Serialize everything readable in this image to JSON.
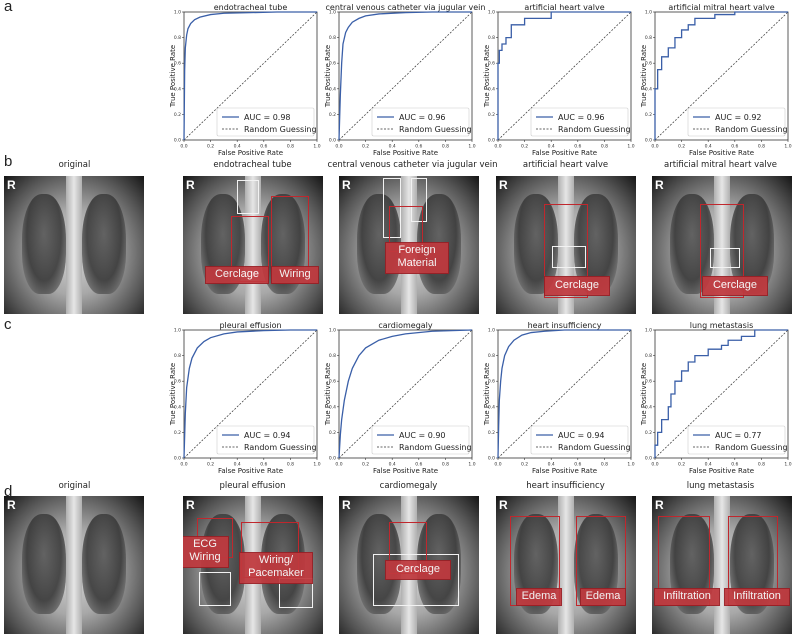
{
  "panels": {
    "a": "a",
    "b": "b",
    "c": "c",
    "d": "d"
  },
  "axis_labels": {
    "x": "False Positive Rate",
    "y": "True Positive Rate",
    "ticks": [
      "0.0",
      "0.2",
      "0.4",
      "0.6",
      "0.8",
      "1.0"
    ]
  },
  "legend": {
    "random": "Random Guessing"
  },
  "colors": {
    "roc": "#3a5fa8",
    "box_red": "#c0272d",
    "tag_red": "#c0393e"
  },
  "chart_data": [
    {
      "type": "line",
      "title": "endotracheal tube",
      "auc_label": "AUC = 0.98",
      "xlim": [
        0,
        1
      ],
      "ylim": [
        0,
        1
      ],
      "legend": "bottom-right",
      "x": [
        0,
        0.005,
        0.01,
        0.02,
        0.03,
        0.05,
        0.08,
        0.12,
        0.2,
        0.3,
        0.5,
        0.7,
        1.0
      ],
      "y": [
        0,
        0.55,
        0.72,
        0.82,
        0.87,
        0.91,
        0.94,
        0.96,
        0.98,
        0.99,
        0.995,
        1.0,
        1.0
      ]
    },
    {
      "type": "line",
      "title": "central venous catheter via jugular vein",
      "auc_label": "AUC = 0.96",
      "xlim": [
        0,
        1
      ],
      "ylim": [
        0,
        1
      ],
      "legend": "bottom-right",
      "x": [
        0,
        0.01,
        0.02,
        0.03,
        0.05,
        0.07,
        0.1,
        0.15,
        0.2,
        0.3,
        0.5,
        0.7,
        1.0
      ],
      "y": [
        0,
        0.35,
        0.6,
        0.75,
        0.84,
        0.88,
        0.92,
        0.95,
        0.97,
        0.985,
        0.995,
        1.0,
        1.0
      ]
    },
    {
      "type": "line",
      "title": "artificial heart valve",
      "auc_label": "AUC = 0.96",
      "xlim": [
        0,
        1
      ],
      "ylim": [
        0,
        1
      ],
      "legend": "bottom-right",
      "x": [
        0,
        0,
        0.01,
        0.01,
        0.03,
        0.03,
        0.06,
        0.06,
        0.1,
        0.1,
        0.2,
        0.2,
        0.4,
        0.4,
        1.0
      ],
      "y": [
        0,
        0.6,
        0.6,
        0.7,
        0.7,
        0.75,
        0.75,
        0.8,
        0.8,
        0.9,
        0.9,
        0.95,
        0.95,
        1.0,
        1.0
      ]
    },
    {
      "type": "line",
      "title": "artificial mitral heart valve",
      "auc_label": "AUC = 0.92",
      "xlim": [
        0,
        1
      ],
      "ylim": [
        0,
        1
      ],
      "legend": "bottom-right",
      "x": [
        0,
        0,
        0.02,
        0.02,
        0.05,
        0.05,
        0.1,
        0.1,
        0.15,
        0.15,
        0.2,
        0.2,
        0.25,
        0.25,
        0.3,
        0.3,
        0.45,
        0.45,
        0.6,
        0.6,
        1.0
      ],
      "y": [
        0,
        0.4,
        0.4,
        0.55,
        0.55,
        0.65,
        0.65,
        0.72,
        0.72,
        0.8,
        0.8,
        0.86,
        0.86,
        0.9,
        0.9,
        0.95,
        0.95,
        0.98,
        0.98,
        1.0,
        1.0
      ]
    },
    {
      "type": "line",
      "title": "pleural effusion",
      "auc_label": "AUC = 0.94",
      "xlim": [
        0,
        1
      ],
      "ylim": [
        0,
        1
      ],
      "legend": "bottom-right",
      "x": [
        0,
        0.01,
        0.02,
        0.04,
        0.06,
        0.1,
        0.15,
        0.2,
        0.3,
        0.4,
        0.6,
        0.8,
        1.0
      ],
      "y": [
        0,
        0.35,
        0.55,
        0.7,
        0.78,
        0.86,
        0.91,
        0.94,
        0.97,
        0.985,
        0.995,
        1.0,
        1.0
      ]
    },
    {
      "type": "line",
      "title": "cardiomegaly",
      "auc_label": "AUC = 0.90",
      "xlim": [
        0,
        1
      ],
      "ylim": [
        0,
        1
      ],
      "legend": "bottom-right",
      "x": [
        0,
        0.01,
        0.02,
        0.04,
        0.07,
        0.1,
        0.15,
        0.2,
        0.3,
        0.4,
        0.5,
        0.7,
        1.0
      ],
      "y": [
        0,
        0.18,
        0.3,
        0.45,
        0.6,
        0.7,
        0.8,
        0.86,
        0.92,
        0.95,
        0.97,
        0.99,
        1.0
      ]
    },
    {
      "type": "line",
      "title": "heart insufficiency",
      "auc_label": "AUC = 0.94",
      "xlim": [
        0,
        1
      ],
      "ylim": [
        0,
        1
      ],
      "legend": "bottom-right",
      "x": [
        0,
        0.005,
        0.01,
        0.02,
        0.03,
        0.05,
        0.08,
        0.12,
        0.18,
        0.25,
        0.35,
        0.5,
        1.0
      ],
      "y": [
        0,
        0.25,
        0.45,
        0.6,
        0.7,
        0.8,
        0.87,
        0.92,
        0.96,
        0.98,
        0.99,
        1.0,
        1.0
      ]
    },
    {
      "type": "line",
      "title": "lung metastasis",
      "auc_label": "AUC = 0.77",
      "xlim": [
        0,
        1
      ],
      "ylim": [
        0,
        1
      ],
      "legend": "bottom-right",
      "x": [
        0,
        0,
        0.02,
        0.02,
        0.05,
        0.05,
        0.1,
        0.1,
        0.12,
        0.12,
        0.15,
        0.15,
        0.2,
        0.2,
        0.25,
        0.25,
        0.3,
        0.3,
        0.4,
        0.4,
        0.5,
        0.5,
        0.55,
        0.55,
        0.65,
        0.65,
        0.75,
        0.75,
        1.0
      ],
      "y": [
        0,
        0.1,
        0.1,
        0.2,
        0.2,
        0.3,
        0.3,
        0.4,
        0.4,
        0.5,
        0.5,
        0.6,
        0.6,
        0.68,
        0.68,
        0.75,
        0.75,
        0.8,
        0.8,
        0.85,
        0.85,
        0.88,
        0.88,
        0.92,
        0.92,
        0.95,
        0.95,
        1.0,
        1.0
      ]
    }
  ],
  "row_b": {
    "labels": [
      "original",
      "endotracheal tube",
      "central venous catheter via jugular vein",
      "artificial heart valve",
      "artificial mitral heart valve"
    ],
    "tags": {
      "cerclage": "Cerclage",
      "wiring": "Wiring",
      "foreign_1": "Foreign",
      "foreign_2": "Material"
    }
  },
  "row_d": {
    "labels": [
      "original",
      "pleural effusion",
      "cardiomegaly",
      "heart insufficiency",
      "lung metastasis"
    ],
    "tags": {
      "ecg_1": "ECG",
      "ecg_2": "Wiring",
      "wiring_1": "Wiring/",
      "wiring_2": "Pacemaker",
      "cerclage": "Cerclage",
      "edema": "Edema",
      "infiltration": "Infiltration"
    }
  },
  "r_marker": "R"
}
